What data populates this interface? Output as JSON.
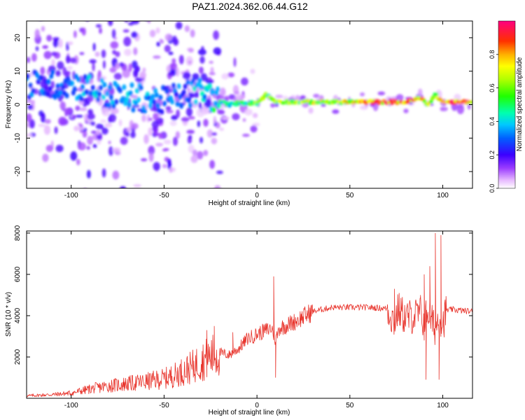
{
  "title": "PAZ1.2024.362.06.44.G12",
  "chart_data": [
    {
      "type": "heatmap",
      "xlabel": "Height of straight line (km)",
      "ylabel": "Frequency (Hz)",
      "xlim": [
        -124,
        116
      ],
      "ylim": [
        -25,
        25
      ],
      "xticks": [
        -100,
        -50,
        0,
        50,
        100
      ],
      "yticks": [
        -20,
        -10,
        0,
        10,
        20
      ],
      "colorbar": {
        "label": "Normalized spectral amplitude",
        "range": [
          0.0,
          1.0
        ],
        "ticks": [
          0.0,
          0.2,
          0.4,
          0.6,
          0.8
        ],
        "tick_labels": [
          "0.0",
          "0.2",
          "0.4",
          "0.6",
          "0.8"
        ]
      },
      "ridge": {
        "x": [
          -124,
          -100,
          -90,
          -80,
          -70,
          -60,
          -50,
          -40,
          -30,
          -20,
          -15,
          -10,
          -5,
          0,
          5,
          10,
          20,
          30,
          40,
          50,
          60,
          70,
          80,
          88,
          92,
          96,
          100,
          110,
          116
        ],
        "freq": [
          6,
          6,
          5,
          3,
          2,
          2,
          1,
          3,
          4,
          1,
          0,
          0.5,
          0.5,
          0.5,
          3,
          1,
          0.8,
          0.8,
          0.8,
          0.8,
          0.8,
          0.8,
          0.8,
          2,
          0,
          3,
          0.8,
          0.8,
          0.8
        ],
        "amplitude": [
          0.3,
          0.3,
          0.35,
          0.35,
          0.35,
          0.35,
          0.3,
          0.3,
          0.4,
          0.5,
          0.5,
          0.5,
          0.5,
          0.6,
          0.6,
          0.6,
          0.6,
          0.65,
          0.7,
          0.7,
          0.8,
          0.85,
          0.9,
          0.85,
          0.7,
          0.6,
          0.9,
          0.9,
          0.9
        ]
      }
    },
    {
      "type": "line",
      "xlabel": "Height of straight line (km)",
      "ylabel": "SNR (10 * v/v)",
      "xlim": [
        -124,
        116
      ],
      "ylim": [
        0,
        8100
      ],
      "xticks": [
        -100,
        -50,
        0,
        50,
        100
      ],
      "yticks": [
        2000,
        4000,
        6000,
        8000
      ],
      "color": "#e8342c",
      "trend": {
        "x": [
          -124,
          -110,
          -100,
          -90,
          -80,
          -70,
          -60,
          -50,
          -45,
          -40,
          -35,
          -30,
          -25,
          -20,
          -15,
          -10,
          -5,
          0,
          5,
          8,
          10,
          12,
          15,
          20,
          25,
          30,
          35,
          40,
          50,
          60,
          70,
          74,
          76,
          80,
          85,
          88,
          90,
          92,
          94,
          96,
          98,
          100,
          102,
          105,
          110,
          116
        ],
        "y": [
          120,
          180,
          250,
          450,
          600,
          700,
          800,
          950,
          1100,
          1300,
          1500,
          1800,
          2000,
          2200,
          2100,
          2400,
          2900,
          3100,
          3300,
          3400,
          2800,
          3400,
          3500,
          3700,
          3950,
          4200,
          4300,
          4400,
          4400,
          4400,
          4350,
          3700,
          4300,
          3900,
          4000,
          4100,
          3600,
          4300,
          3700,
          3400,
          4000,
          3600,
          4250,
          4300,
          4250,
          4200
        ]
      },
      "spikes": [
        {
          "x": -27,
          "y": 3300
        },
        {
          "x": -23,
          "y": 3500
        },
        {
          "x": -13,
          "y": 3200
        },
        {
          "x": 9,
          "y": 5900
        },
        {
          "x": 10,
          "y": 1000
        },
        {
          "x": 74,
          "y": 5300
        },
        {
          "x": 88,
          "y": 5000
        },
        {
          "x": 90,
          "y": 6000
        },
        {
          "x": 91,
          "y": 900
        },
        {
          "x": 93,
          "y": 6400
        },
        {
          "x": 96,
          "y": 8000
        },
        {
          "x": 99,
          "y": 7900
        },
        {
          "x": 98,
          "y": 900
        }
      ]
    }
  ]
}
